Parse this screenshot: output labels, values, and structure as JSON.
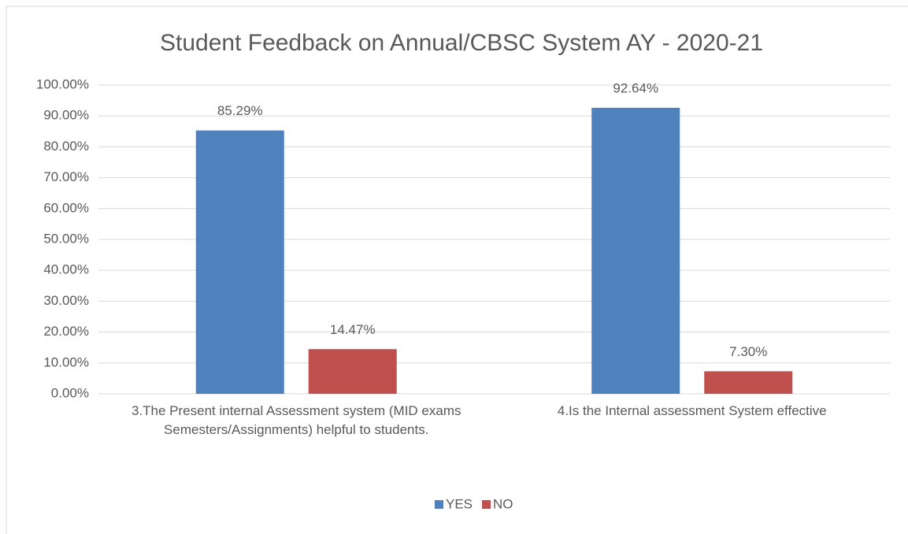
{
  "chart_data": {
    "type": "bar",
    "title": "Student Feedback on Annual/CBSC System AY - 2020-21",
    "categories": [
      "3.The Present internal Assessment system (MID exams Semesters/Assignments) helpful to students.",
      "4.Is the Internal assessment System effective"
    ],
    "series": [
      {
        "name": "YES",
        "color": "#4f81bd",
        "values": [
          85.29,
          92.64
        ],
        "value_labels": [
          "85.29%",
          "92.64%"
        ]
      },
      {
        "name": "NO",
        "color": "#c0504d",
        "values": [
          14.47,
          7.3
        ],
        "value_labels": [
          "14.47%",
          "7.30%"
        ]
      }
    ],
    "ylim": [
      0,
      100
    ],
    "yticks": [
      {
        "value": 0,
        "label": "0.00%"
      },
      {
        "value": 10,
        "label": "10.00%"
      },
      {
        "value": 20,
        "label": "20.00%"
      },
      {
        "value": 30,
        "label": "30.00%"
      },
      {
        "value": 40,
        "label": "40.00%"
      },
      {
        "value": 50,
        "label": "50.00%"
      },
      {
        "value": 60,
        "label": "60.00%"
      },
      {
        "value": 70,
        "label": "70.00%"
      },
      {
        "value": 80,
        "label": "80.00%"
      },
      {
        "value": 90,
        "label": "90.00%"
      },
      {
        "value": 100,
        "label": "100.00%"
      }
    ],
    "grid": true,
    "legend": "bottom"
  }
}
